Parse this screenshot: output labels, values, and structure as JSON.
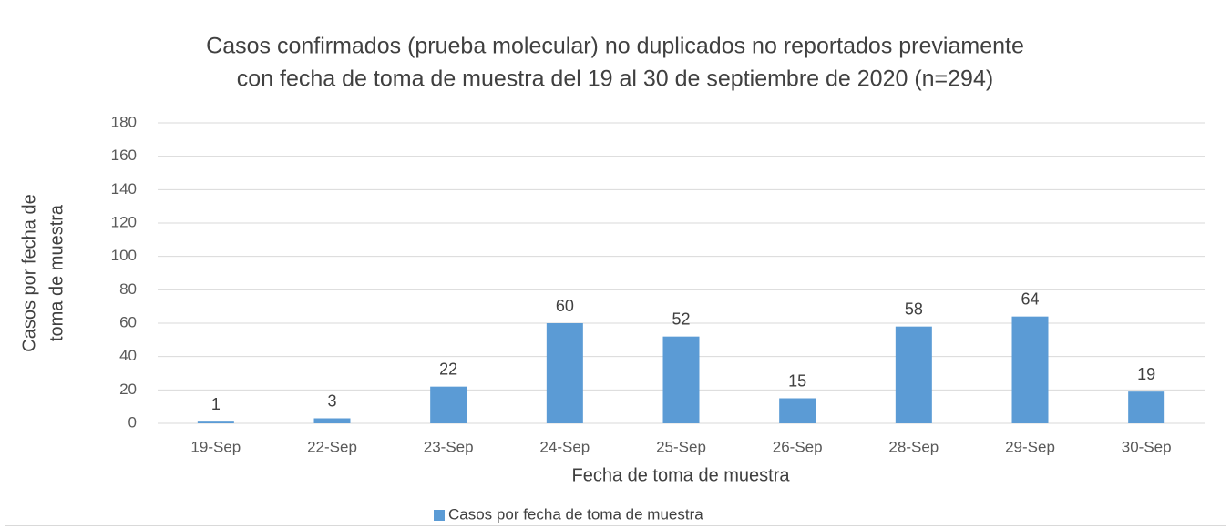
{
  "chart_data": {
    "type": "bar",
    "title": [
      "Casos confirmados (prueba molecular) no duplicados no reportados previamente",
      "con fecha de toma de muestra del 19 al 30 de septiembre de 2020 (n=294)"
    ],
    "x_label": "Fecha de toma de muestra",
    "y_label": [
      "Casos por fecha de",
      "toma de muestra"
    ],
    "categories": [
      "19-Sep",
      "22-Sep",
      "23-Sep",
      "24-Sep",
      "25-Sep",
      "26-Sep",
      "28-Sep",
      "29-Sep",
      "30-Sep"
    ],
    "series": [
      {
        "name": "Casos por fecha de toma de muestra",
        "color": "#5b9bd5",
        "values": [
          1,
          3,
          22,
          60,
          52,
          15,
          58,
          64,
          19
        ]
      }
    ],
    "ylim": [
      0,
      180
    ],
    "yticks": [
      0,
      20,
      40,
      60,
      80,
      100,
      120,
      140,
      160,
      180
    ],
    "grid": true,
    "legend": "bottom"
  }
}
